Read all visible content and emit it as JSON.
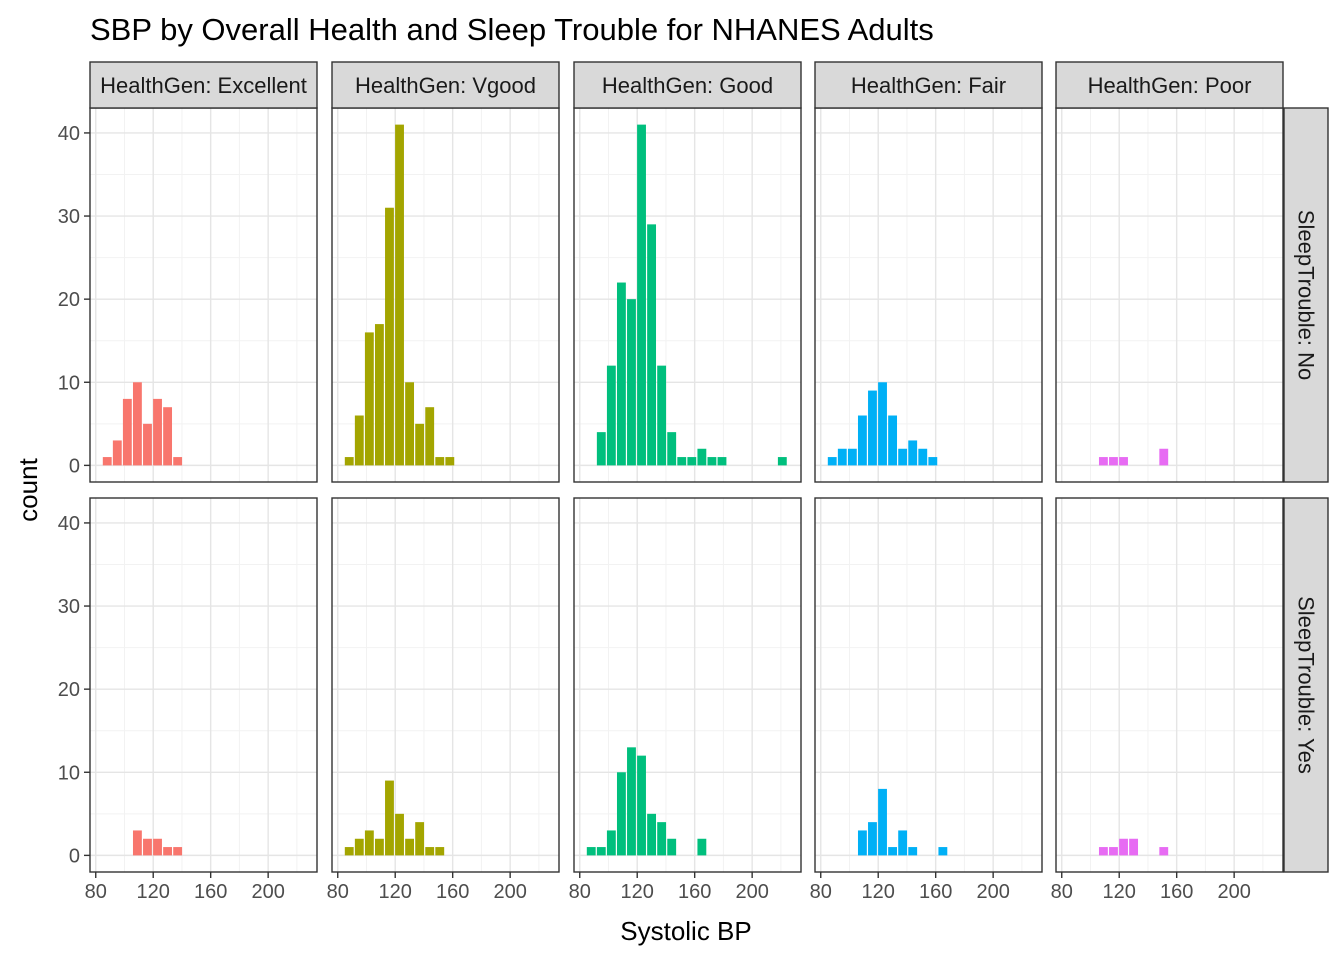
{
  "chart_data": {
    "type": "bar",
    "title": "SBP by Overall Health and Sleep Trouble for NHANES Adults",
    "xlabel": "Systolic BP",
    "ylabel": "count",
    "xlim": [
      76,
      234
    ],
    "ylim": [
      -2,
      43
    ],
    "x_ticks": [
      80,
      120,
      160,
      200
    ],
    "y_ticks": [
      0,
      10,
      20,
      30,
      40
    ],
    "grid": true,
    "legend": "none",
    "column_facets": [
      {
        "label": "HealthGen: Excellent",
        "color": "#F8766D"
      },
      {
        "label": "HealthGen: Vgood",
        "color": "#A3A500"
      },
      {
        "label": "HealthGen: Good",
        "color": "#00BF7D"
      },
      {
        "label": "HealthGen: Fair",
        "color": "#00B0F6"
      },
      {
        "label": "HealthGen: Poor",
        "color": "#E76BF3"
      }
    ],
    "row_facets": [
      {
        "label": "SleepTrouble: No"
      },
      {
        "label": "SleepTrouble: Yes"
      }
    ],
    "panels": [
      {
        "column": 0,
        "row": 0,
        "bins": [
          [
            88,
            1
          ],
          [
            95,
            3
          ],
          [
            102,
            8
          ],
          [
            109,
            10
          ],
          [
            116,
            5
          ],
          [
            123,
            8
          ],
          [
            130,
            7
          ],
          [
            137,
            1
          ]
        ]
      },
      {
        "column": 1,
        "row": 0,
        "bins": [
          [
            88,
            1
          ],
          [
            95,
            6
          ],
          [
            102,
            16
          ],
          [
            109,
            17
          ],
          [
            116,
            31
          ],
          [
            123,
            41
          ],
          [
            130,
            10
          ],
          [
            137,
            5
          ],
          [
            144,
            7
          ],
          [
            151,
            1
          ],
          [
            158,
            1
          ]
        ]
      },
      {
        "column": 2,
        "row": 0,
        "bins": [
          [
            95,
            4
          ],
          [
            102,
            12
          ],
          [
            109,
            22
          ],
          [
            116,
            20
          ],
          [
            123,
            41
          ],
          [
            130,
            29
          ],
          [
            137,
            12
          ],
          [
            144,
            4
          ],
          [
            151,
            1
          ],
          [
            158,
            1
          ],
          [
            165,
            2
          ],
          [
            172,
            1
          ],
          [
            179,
            1
          ],
          [
            221,
            1
          ]
        ]
      },
      {
        "column": 3,
        "row": 0,
        "bins": [
          [
            88,
            1
          ],
          [
            95,
            2
          ],
          [
            102,
            2
          ],
          [
            109,
            6
          ],
          [
            116,
            9
          ],
          [
            123,
            10
          ],
          [
            130,
            6
          ],
          [
            137,
            2
          ],
          [
            144,
            3
          ],
          [
            151,
            2
          ],
          [
            158,
            1
          ]
        ]
      },
      {
        "column": 4,
        "row": 0,
        "bins": [
          [
            109,
            1
          ],
          [
            116,
            1
          ],
          [
            123,
            1
          ],
          [
            151,
            2
          ]
        ]
      },
      {
        "column": 0,
        "row": 1,
        "bins": [
          [
            109,
            3
          ],
          [
            116,
            2
          ],
          [
            123,
            2
          ],
          [
            130,
            1
          ],
          [
            137,
            1
          ]
        ]
      },
      {
        "column": 1,
        "row": 1,
        "bins": [
          [
            88,
            1
          ],
          [
            95,
            2
          ],
          [
            102,
            3
          ],
          [
            109,
            2
          ],
          [
            116,
            9
          ],
          [
            123,
            5
          ],
          [
            130,
            2
          ],
          [
            137,
            4
          ],
          [
            144,
            1
          ],
          [
            151,
            1
          ]
        ]
      },
      {
        "column": 2,
        "row": 1,
        "bins": [
          [
            88,
            1
          ],
          [
            95,
            1
          ],
          [
            102,
            3
          ],
          [
            109,
            10
          ],
          [
            116,
            13
          ],
          [
            123,
            12
          ],
          [
            130,
            5
          ],
          [
            137,
            4
          ],
          [
            144,
            2
          ],
          [
            165,
            2
          ]
        ]
      },
      {
        "column": 3,
        "row": 1,
        "bins": [
          [
            109,
            3
          ],
          [
            116,
            4
          ],
          [
            123,
            8
          ],
          [
            130,
            1
          ],
          [
            137,
            3
          ],
          [
            144,
            1
          ],
          [
            165,
            1
          ]
        ]
      },
      {
        "column": 4,
        "row": 1,
        "bins": [
          [
            109,
            1
          ],
          [
            116,
            1
          ],
          [
            123,
            2
          ],
          [
            130,
            2
          ],
          [
            151,
            1
          ]
        ]
      }
    ]
  }
}
